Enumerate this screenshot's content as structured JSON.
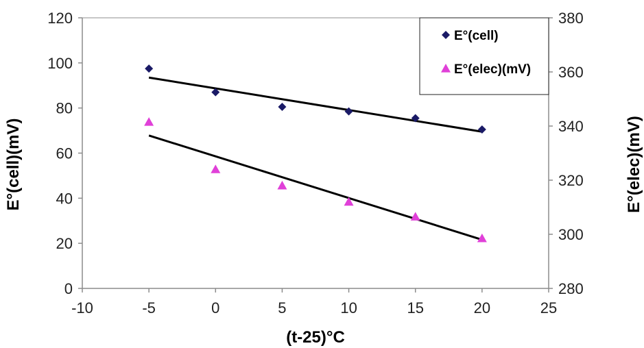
{
  "chart_data": {
    "type": "scatter",
    "title": "",
    "xlabel": "(t-25)°C",
    "ylabel_left": "E°(cell)(mV)",
    "ylabel_right": "E°(elec)(mV)",
    "xlim": [
      -10,
      25
    ],
    "xticks": [
      -10,
      -5,
      0,
      5,
      10,
      15,
      20,
      25
    ],
    "ylim_left": [
      0,
      120
    ],
    "yticks_left": [
      0,
      20,
      40,
      60,
      80,
      100,
      120
    ],
    "ylim_right": [
      280,
      380
    ],
    "yticks_right": [
      280,
      300,
      320,
      340,
      360,
      380
    ],
    "grid": false,
    "legend_position": "top-right",
    "series": [
      {
        "name": "E°(cell)",
        "axis": "left",
        "marker": "diamond",
        "color": "#1a1a66",
        "x": [
          -5,
          0,
          5,
          10,
          15,
          20
        ],
        "y": [
          97.5,
          87,
          80.5,
          78.5,
          75.5,
          70.5
        ],
        "trendline": {
          "x": [
            -5,
            20
          ],
          "y": [
            93.5,
            69.5
          ]
        }
      },
      {
        "name": "E°(elec)(mV)",
        "axis": "right",
        "marker": "triangle",
        "color": "#e040d8",
        "x": [
          -5,
          0,
          5,
          10,
          15,
          20
        ],
        "y": [
          341.5,
          324,
          318,
          312,
          306.5,
          298.5
        ],
        "trendline": {
          "x": [
            -5,
            20
          ],
          "y": [
            336.5,
            298
          ]
        }
      }
    ]
  }
}
